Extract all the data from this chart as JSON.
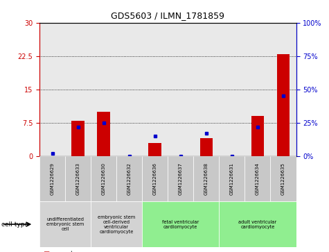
{
  "title": "GDS5603 / ILMN_1781859",
  "samples": [
    "GSM1226629",
    "GSM1226633",
    "GSM1226630",
    "GSM1226632",
    "GSM1226636",
    "GSM1226637",
    "GSM1226638",
    "GSM1226631",
    "GSM1226634",
    "GSM1226635"
  ],
  "counts": [
    0,
    8,
    10,
    0,
    3,
    0,
    4,
    0,
    9,
    23
  ],
  "percentiles": [
    2,
    22,
    25,
    0,
    15,
    0,
    17,
    0,
    22,
    45
  ],
  "ylim_left": [
    0,
    30
  ],
  "ylim_right": [
    0,
    100
  ],
  "yticks_left": [
    0,
    7.5,
    15,
    22.5,
    30
  ],
  "yticks_right": [
    0,
    25,
    50,
    75,
    100
  ],
  "ytick_labels_left": [
    "0",
    "7.5",
    "15",
    "22.5",
    "30"
  ],
  "ytick_labels_right": [
    "0%",
    "25%",
    "50%",
    "75%",
    "100%"
  ],
  "cell_groups": [
    {
      "label": "undifferentiated\nembryonic stem\ncell",
      "start": 0,
      "end": 2,
      "color": "#d3d3d3"
    },
    {
      "label": "embryonic stem\ncell-derived\nventricular\ncardiomyocyte",
      "start": 2,
      "end": 4,
      "color": "#d3d3d3"
    },
    {
      "label": "fetal ventricular\ncardiomyocyte",
      "start": 4,
      "end": 7,
      "color": "#90ee90"
    },
    {
      "label": "adult ventricular\ncardiomyocyte",
      "start": 7,
      "end": 10,
      "color": "#90ee90"
    }
  ],
  "bar_color": "#cc0000",
  "dot_color": "#0000cc",
  "grid_color": "#000000",
  "background_color": "#ffffff",
  "left_axis_color": "#cc0000",
  "right_axis_color": "#0000cc",
  "sample_bg_color": "#c8c8c8",
  "bar_width": 0.5
}
